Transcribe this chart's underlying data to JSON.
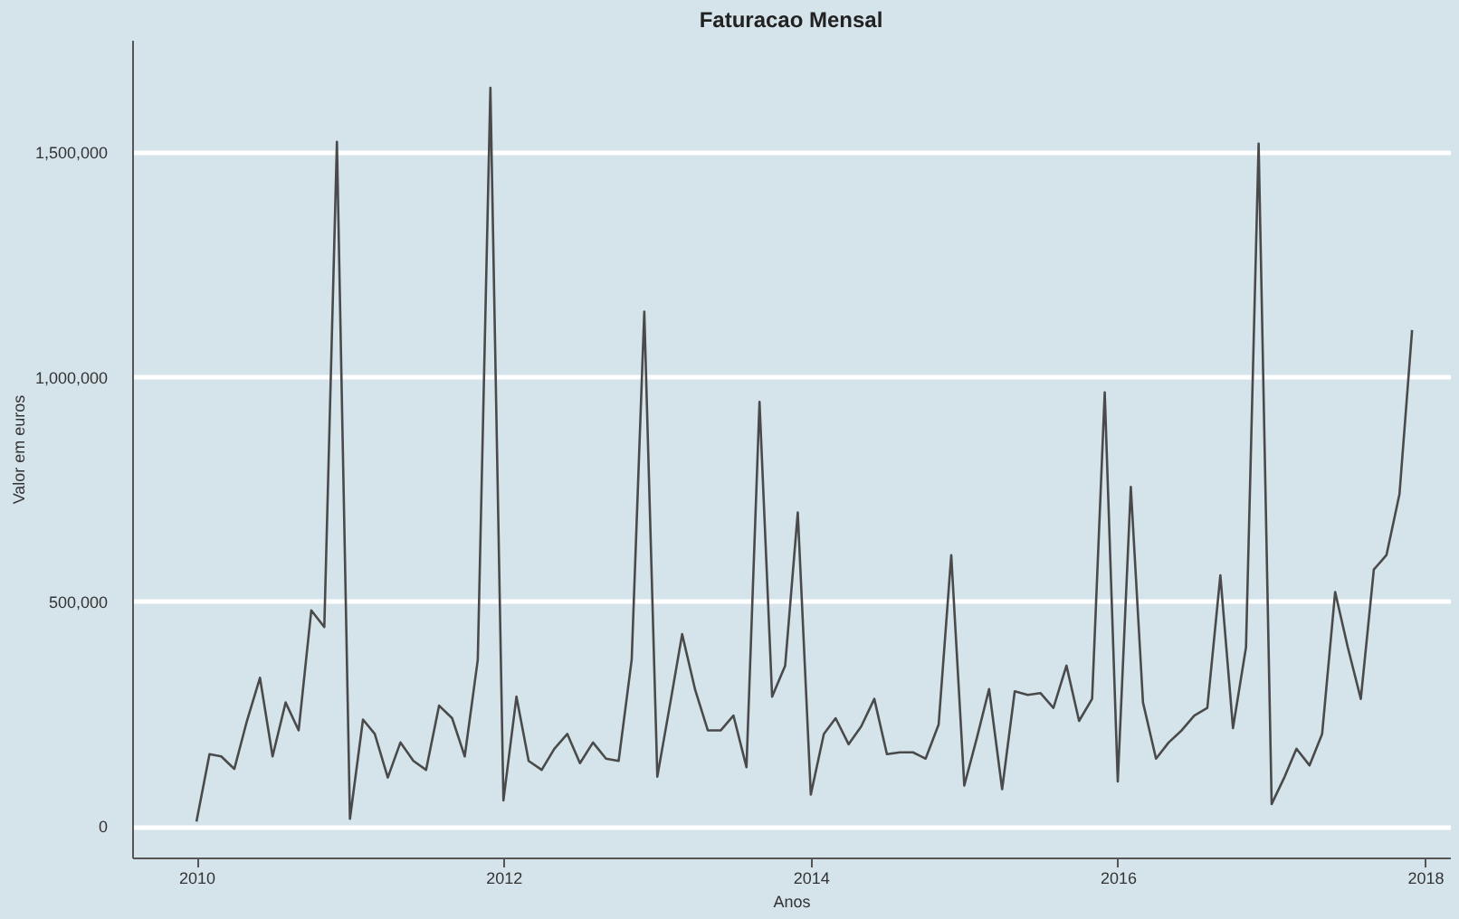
{
  "chart_data": {
    "type": "line",
    "title": "Faturacao Mensal",
    "xlabel": "Anos",
    "ylabel": "Valor em euros",
    "x": [
      "2010-01",
      "2010-02",
      "2010-03",
      "2010-04",
      "2010-05",
      "2010-06",
      "2010-07",
      "2010-08",
      "2010-09",
      "2010-10",
      "2010-11",
      "2010-12",
      "2011-01",
      "2011-02",
      "2011-03",
      "2011-04",
      "2011-05",
      "2011-06",
      "2011-07",
      "2011-08",
      "2011-09",
      "2011-10",
      "2011-11",
      "2011-12",
      "2012-01",
      "2012-02",
      "2012-03",
      "2012-04",
      "2012-05",
      "2012-06",
      "2012-07",
      "2012-08",
      "2012-09",
      "2012-10",
      "2012-11",
      "2012-12",
      "2013-01",
      "2013-02",
      "2013-03",
      "2013-04",
      "2013-05",
      "2013-06",
      "2013-07",
      "2013-08",
      "2013-09",
      "2013-10",
      "2013-11",
      "2013-12",
      "2014-01",
      "2014-02",
      "2014-03",
      "2014-04",
      "2014-05",
      "2014-06",
      "2014-07",
      "2014-08",
      "2014-09",
      "2014-10",
      "2014-11",
      "2014-12",
      "2015-01",
      "2015-02",
      "2015-03",
      "2015-04",
      "2015-05",
      "2015-06",
      "2015-07",
      "2015-08",
      "2015-09",
      "2015-10",
      "2015-11",
      "2015-12",
      "2016-01",
      "2016-02",
      "2016-03",
      "2016-04",
      "2016-05",
      "2016-06",
      "2016-07",
      "2016-08",
      "2016-09",
      "2016-10",
      "2016-11",
      "2016-12",
      "2017-01",
      "2017-02",
      "2017-03",
      "2017-04",
      "2017-05",
      "2017-06",
      "2017-07",
      "2017-08",
      "2017-09",
      "2017-10",
      "2017-11",
      "2017-12"
    ],
    "series": [
      {
        "color": "#4a4a4a",
        "values": [
          10000,
          160000,
          155000,
          127000,
          234000,
          330000,
          155000,
          275000,
          213000,
          480000,
          443000,
          1523000,
          16000,
          237000,
          205000,
          108000,
          186000,
          145000,
          125000,
          268000,
          240000,
          155000,
          370000,
          1643000,
          57000,
          288000,
          145000,
          125000,
          172000,
          205000,
          140000,
          186000,
          150000,
          145000,
          370000,
          1145000,
          110000,
          275000,
          427000,
          303000,
          213000,
          213000,
          246000,
          131000,
          944000,
          288000,
          357000,
          698000,
          70000,
          205000,
          240000,
          182000,
          222000,
          283000,
          160000,
          164000,
          164000,
          150000,
          226000,
          603000,
          90000,
          200000,
          305000,
          82000,
          300000,
          292000,
          296000,
          263000,
          357000,
          234000,
          283000,
          965000,
          99000,
          755000,
          275000,
          150000,
          186000,
          213000,
          246000,
          263000,
          558000,
          218000,
          398000,
          1519000,
          49000,
          110000,
          172000,
          135000,
          205000,
          521000,
          398000,
          283000,
          571000,
          603000,
          739000,
          1104000
        ]
      }
    ],
    "xlim": [
      "2009-08",
      "2018-03"
    ],
    "xticks": [
      {
        "value": "2010-01",
        "label": "2010"
      },
      {
        "value": "2012-01",
        "label": "2012"
      },
      {
        "value": "2014-01",
        "label": "2014"
      },
      {
        "value": "2016-01",
        "label": "2016"
      },
      {
        "value": "2018-01",
        "label": "2018"
      }
    ],
    "ylim": [
      -70000,
      1750000
    ],
    "yticks": [
      {
        "value": 0,
        "label": "0"
      },
      {
        "value": 500000,
        "label": "500,000"
      },
      {
        "value": 1000000,
        "label": "1,000,000"
      },
      {
        "value": 1500000,
        "label": "1,500,000"
      }
    ],
    "grid": "y",
    "legend": false,
    "marker": "none",
    "line_style": "solid"
  }
}
